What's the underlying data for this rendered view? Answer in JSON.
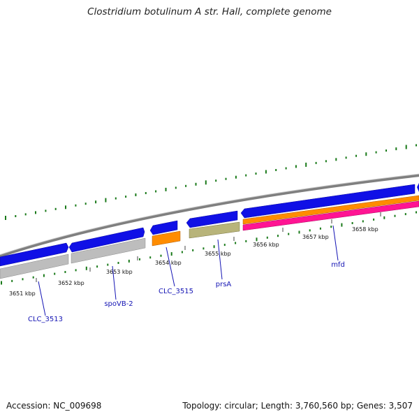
{
  "title": "Clostridium botulinum A str. Hall, complete genome",
  "footer": {
    "accession": "Accession: NC_009698",
    "summary": "Topology: circular; Length: 3,760,560 bp; Genes: 3,507"
  },
  "colors": {
    "backbone": "#888888",
    "cds": "#1010e6",
    "gene_grey": "#bdbdbd",
    "orange": "#ff8c00",
    "olive": "#b8b47a",
    "pink": "#ff1493",
    "tick_green": "#1a7a1a",
    "label_blue": "#1414b4"
  },
  "scale": {
    "ticks": [
      {
        "pos": 3651,
        "label": "3651 kbp"
      },
      {
        "pos": 3652,
        "label": "3652 kbp"
      },
      {
        "pos": 3653,
        "label": "3653 kbp"
      },
      {
        "pos": 3654,
        "label": "3654 kbp"
      },
      {
        "pos": 3655,
        "label": "3655 kbp"
      },
      {
        "pos": 3656,
        "label": "3656 kbp"
      },
      {
        "pos": 3657,
        "label": "3657 kbp"
      },
      {
        "pos": 3658,
        "label": "3658 kbp"
      }
    ]
  },
  "gene_labels": [
    "CLC_3513",
    "spoVB-2",
    "CLC_3515",
    "prsA",
    "mfd"
  ]
}
